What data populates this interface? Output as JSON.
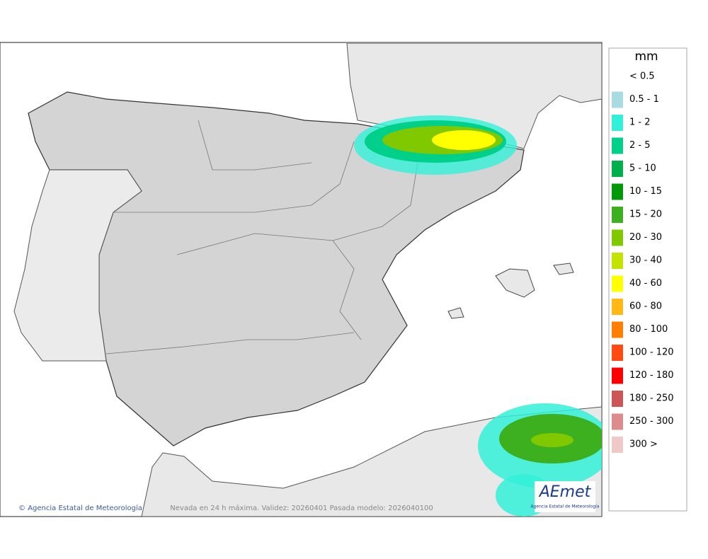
{
  "legend": {
    "unit": "mm",
    "items": [
      {
        "label": "< 0.5"
      },
      {
        "label": "0.5 - 1",
        "color": "#a8dce2"
      },
      {
        "label": "1 - 2",
        "color": "#33f0d8"
      },
      {
        "label": "2 - 5",
        "color": "#00d08a"
      },
      {
        "label": "5 - 10",
        "color": "#00b04c"
      },
      {
        "label": "10 - 15",
        "color": "#00990a"
      },
      {
        "label": "15 - 20",
        "color": "#3cb01e"
      },
      {
        "label": "20 - 30",
        "color": "#80c800"
      },
      {
        "label": "30 - 40",
        "color": "#c4e400"
      },
      {
        "label": "40 - 60",
        "color": "#ffff00"
      },
      {
        "label": "60 - 80",
        "color": "#ffb814"
      },
      {
        "label": "80 - 100",
        "color": "#ff8000"
      },
      {
        "label": "100 - 120",
        "color": "#ff4a10"
      },
      {
        "label": "120 - 180",
        "color": "#ff0000"
      },
      {
        "label": "180 - 250",
        "color": "#cc5555"
      },
      {
        "label": "250 - 300",
        "color": "#dc8c8c"
      },
      {
        "label": "300 >",
        "color": "#f0c8c8"
      }
    ]
  },
  "footer": {
    "credit": "Agencia Estatal de Meteorología",
    "caption": "Nevada en 24 h máxima. Validez: 20260401 Pasada modelo: 2026040100"
  },
  "logo": {
    "name": "AEmet",
    "subtitle": "Agencia Estatal de Meteorología"
  }
}
